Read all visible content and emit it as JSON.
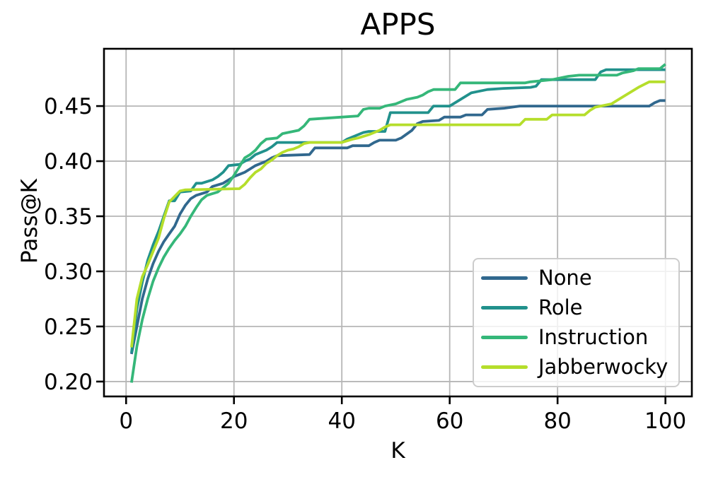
{
  "chart_data": {
    "type": "line",
    "title": "APPS",
    "xlabel": "K",
    "ylabel": "Pass@K",
    "xlim": [
      -4.1,
      104.9
    ],
    "ylim": [
      0.1865,
      0.502
    ],
    "xticks": [
      0,
      20,
      40,
      60,
      80,
      100
    ],
    "yticks": [
      "0.20",
      "0.25",
      "0.30",
      "0.35",
      "0.40",
      "0.45"
    ],
    "ytick_values": [
      0.2,
      0.25,
      0.3,
      0.35,
      0.4,
      0.45
    ],
    "grid": true,
    "grid_color": "#b6b6b6",
    "axis_color": "#000000",
    "legend_position": "lower right",
    "series": [
      {
        "name": "None",
        "color": "#31688e",
        "points": [
          [
            1,
            0.225
          ],
          [
            2,
            0.25
          ],
          [
            3,
            0.275
          ],
          [
            4,
            0.293
          ],
          [
            5,
            0.307
          ],
          [
            6,
            0.318
          ],
          [
            7,
            0.327
          ],
          [
            8,
            0.334
          ],
          [
            9,
            0.341
          ],
          [
            10,
            0.352
          ],
          [
            11,
            0.36
          ],
          [
            12,
            0.366
          ],
          [
            13,
            0.369
          ],
          [
            15,
            0.372
          ],
          [
            16,
            0.377
          ],
          [
            18,
            0.38
          ],
          [
            19,
            0.383
          ],
          [
            20,
            0.386
          ],
          [
            21,
            0.388
          ],
          [
            22,
            0.39
          ],
          [
            23,
            0.393
          ],
          [
            24,
            0.396
          ],
          [
            25,
            0.398
          ],
          [
            26,
            0.4
          ],
          [
            27,
            0.403
          ],
          [
            28,
            0.405
          ],
          [
            34,
            0.406
          ],
          [
            35,
            0.412
          ],
          [
            41,
            0.412
          ],
          [
            42,
            0.414
          ],
          [
            45,
            0.414
          ],
          [
            46,
            0.417
          ],
          [
            47,
            0.419
          ],
          [
            50,
            0.419
          ],
          [
            51,
            0.421
          ],
          [
            53,
            0.428
          ],
          [
            54,
            0.434
          ],
          [
            55,
            0.436
          ],
          [
            58,
            0.437
          ],
          [
            59,
            0.44
          ],
          [
            62,
            0.44
          ],
          [
            63,
            0.442
          ],
          [
            66,
            0.442
          ],
          [
            67,
            0.447
          ],
          [
            70,
            0.448
          ],
          [
            73,
            0.45
          ],
          [
            97,
            0.45
          ],
          [
            98,
            0.453
          ],
          [
            99,
            0.455
          ],
          [
            100,
            0.455
          ]
        ]
      },
      {
        "name": "Role",
        "color": "#21918c",
        "points": [
          [
            1,
            0.226
          ],
          [
            2,
            0.266
          ],
          [
            3,
            0.29
          ],
          [
            4,
            0.31
          ],
          [
            5,
            0.324
          ],
          [
            6,
            0.336
          ],
          [
            7,
            0.35
          ],
          [
            8,
            0.364
          ],
          [
            9,
            0.364
          ],
          [
            10,
            0.372
          ],
          [
            12,
            0.373
          ],
          [
            13,
            0.38
          ],
          [
            14,
            0.38
          ],
          [
            16,
            0.383
          ],
          [
            17,
            0.386
          ],
          [
            18,
            0.39
          ],
          [
            19,
            0.396
          ],
          [
            21,
            0.397
          ],
          [
            22,
            0.4
          ],
          [
            23,
            0.402
          ],
          [
            24,
            0.406
          ],
          [
            26,
            0.41
          ],
          [
            27,
            0.413
          ],
          [
            28,
            0.417
          ],
          [
            40,
            0.417
          ],
          [
            41,
            0.42
          ],
          [
            42,
            0.422
          ],
          [
            44,
            0.426
          ],
          [
            45,
            0.427
          ],
          [
            48,
            0.427
          ],
          [
            49,
            0.444
          ],
          [
            56,
            0.444
          ],
          [
            57,
            0.45
          ],
          [
            60,
            0.45
          ],
          [
            62,
            0.456
          ],
          [
            64,
            0.462
          ],
          [
            65,
            0.463
          ],
          [
            67,
            0.465
          ],
          [
            70,
            0.466
          ],
          [
            75,
            0.467
          ],
          [
            76,
            0.468
          ],
          [
            77,
            0.474
          ],
          [
            87,
            0.474
          ],
          [
            88,
            0.481
          ],
          [
            89,
            0.483
          ],
          [
            100,
            0.483
          ]
        ]
      },
      {
        "name": "Instruction",
        "color": "#35b779",
        "points": [
          [
            1,
            0.199
          ],
          [
            2,
            0.232
          ],
          [
            3,
            0.256
          ],
          [
            4,
            0.275
          ],
          [
            5,
            0.291
          ],
          [
            6,
            0.303
          ],
          [
            7,
            0.313
          ],
          [
            8,
            0.321
          ],
          [
            9,
            0.328
          ],
          [
            10,
            0.334
          ],
          [
            11,
            0.341
          ],
          [
            12,
            0.35
          ],
          [
            13,
            0.358
          ],
          [
            14,
            0.365
          ],
          [
            15,
            0.369
          ],
          [
            17,
            0.372
          ],
          [
            18,
            0.376
          ],
          [
            19,
            0.38
          ],
          [
            20,
            0.387
          ],
          [
            21,
            0.395
          ],
          [
            22,
            0.403
          ],
          [
            23,
            0.406
          ],
          [
            24,
            0.41
          ],
          [
            25,
            0.416
          ],
          [
            26,
            0.42
          ],
          [
            28,
            0.421
          ],
          [
            29,
            0.425
          ],
          [
            30,
            0.426
          ],
          [
            32,
            0.428
          ],
          [
            33,
            0.432
          ],
          [
            34,
            0.438
          ],
          [
            40,
            0.44
          ],
          [
            43,
            0.441
          ],
          [
            44,
            0.447
          ],
          [
            45,
            0.448
          ],
          [
            47,
            0.448
          ],
          [
            48,
            0.45
          ],
          [
            50,
            0.452
          ],
          [
            52,
            0.456
          ],
          [
            54,
            0.458
          ],
          [
            55,
            0.46
          ],
          [
            56,
            0.463
          ],
          [
            57,
            0.465
          ],
          [
            61,
            0.465
          ],
          [
            62,
            0.471
          ],
          [
            74,
            0.471
          ],
          [
            75,
            0.472
          ],
          [
            79,
            0.474
          ],
          [
            80,
            0.475
          ],
          [
            82,
            0.477
          ],
          [
            84,
            0.478
          ],
          [
            91,
            0.478
          ],
          [
            92,
            0.48
          ],
          [
            94,
            0.482
          ],
          [
            95,
            0.484
          ],
          [
            99,
            0.484
          ],
          [
            100,
            0.488
          ]
        ]
      },
      {
        "name": "Jabberwocky",
        "color": "#b5de2b",
        "points": [
          [
            1,
            0.231
          ],
          [
            2,
            0.275
          ],
          [
            3,
            0.295
          ],
          [
            4,
            0.306
          ],
          [
            5,
            0.318
          ],
          [
            6,
            0.33
          ],
          [
            7,
            0.348
          ],
          [
            8,
            0.363
          ],
          [
            9,
            0.368
          ],
          [
            10,
            0.373
          ],
          [
            11,
            0.374
          ],
          [
            21,
            0.375
          ],
          [
            22,
            0.379
          ],
          [
            23,
            0.385
          ],
          [
            24,
            0.39
          ],
          [
            25,
            0.393
          ],
          [
            26,
            0.398
          ],
          [
            27,
            0.401
          ],
          [
            28,
            0.405
          ],
          [
            29,
            0.408
          ],
          [
            30,
            0.41
          ],
          [
            31,
            0.411
          ],
          [
            32,
            0.413
          ],
          [
            33,
            0.416
          ],
          [
            34,
            0.417
          ],
          [
            40,
            0.417
          ],
          [
            42,
            0.42
          ],
          [
            43,
            0.421
          ],
          [
            45,
            0.424
          ],
          [
            46,
            0.426
          ],
          [
            47,
            0.428
          ],
          [
            48,
            0.431
          ],
          [
            49,
            0.433
          ],
          [
            73,
            0.433
          ],
          [
            74,
            0.438
          ],
          [
            78,
            0.438
          ],
          [
            79,
            0.442
          ],
          [
            85,
            0.442
          ],
          [
            86,
            0.446
          ],
          [
            87,
            0.449
          ],
          [
            88,
            0.45
          ],
          [
            90,
            0.452
          ],
          [
            91,
            0.455
          ],
          [
            93,
            0.461
          ],
          [
            95,
            0.467
          ],
          [
            97,
            0.472
          ],
          [
            100,
            0.472
          ]
        ]
      }
    ]
  }
}
